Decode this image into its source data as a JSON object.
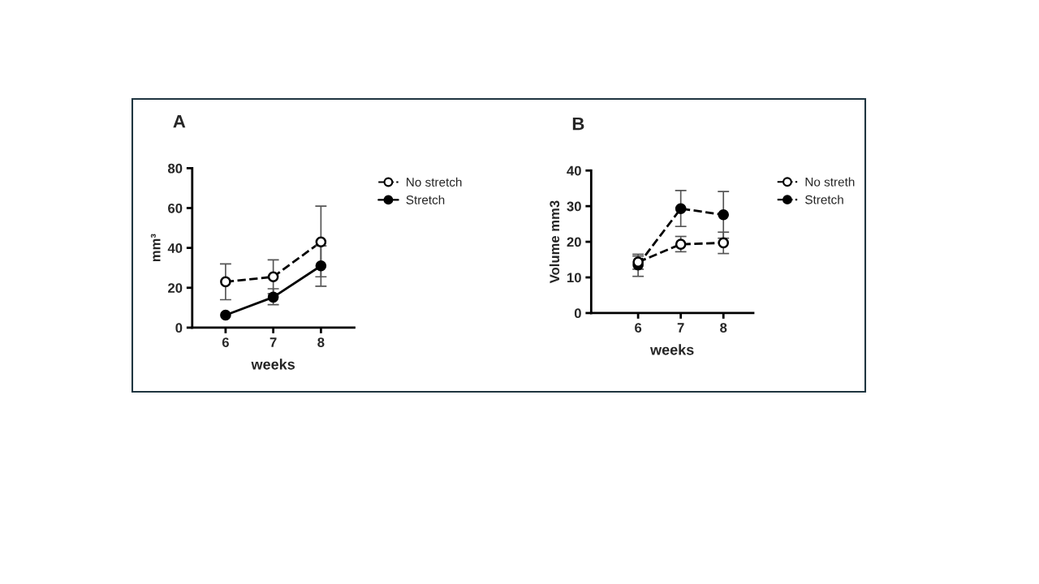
{
  "chart_data": [
    {
      "type": "line",
      "title": "A",
      "xlabel": "weeks",
      "ylabel": "mm³",
      "x": [
        6,
        7,
        8
      ],
      "xlim": [
        5.3,
        8.7
      ],
      "xticks": [
        6,
        7,
        8
      ],
      "ylim": [
        0,
        80
      ],
      "yticks": [
        0,
        20,
        40,
        60,
        80
      ],
      "grid": false,
      "legend": "right",
      "marker": "circle",
      "series": [
        {
          "name": "No stretch",
          "color": "#000000",
          "line_style": "dashed",
          "values": [
            23,
            25.5,
            43
          ],
          "errors": [
            [
              14,
              32
            ],
            [
              17,
              34
            ],
            [
              25.5,
              61
            ]
          ]
        },
        {
          "name": "Stretch",
          "color": "#000000",
          "line_style": "solid",
          "values": [
            6.3,
            15.3,
            31
          ],
          "errors": [
            null,
            [
              11.5,
              19.5
            ],
            [
              20.8,
              41
            ]
          ]
        }
      ]
    },
    {
      "type": "line",
      "title": "B",
      "xlabel": "weeks",
      "ylabel": "Volume mm3",
      "x": [
        6,
        7,
        8
      ],
      "xlim": [
        4.9,
        8.7
      ],
      "xticks": [
        6,
        7,
        8
      ],
      "ylim": [
        0,
        40
      ],
      "yticks": [
        0,
        10,
        20,
        30,
        40
      ],
      "grid": false,
      "legend": "right",
      "marker": "circle",
      "series": [
        {
          "name": "No streth",
          "color": "#000000",
          "line_style": "dashed",
          "values": [
            14.3,
            19.3,
            19.7
          ],
          "errors": [
            [
              12.3,
              16.5
            ],
            [
              17.2,
              21.5
            ],
            [
              16.7,
              22.7
            ]
          ]
        },
        {
          "name": "Stretch",
          "color": "#000000",
          "line_style": "dashed",
          "values": [
            13.5,
            29.3,
            27.6
          ],
          "errors": [
            [
              10.3,
              16
            ],
            [
              24.3,
              34.4
            ],
            [
              21,
              34.1
            ]
          ]
        }
      ]
    }
  ]
}
